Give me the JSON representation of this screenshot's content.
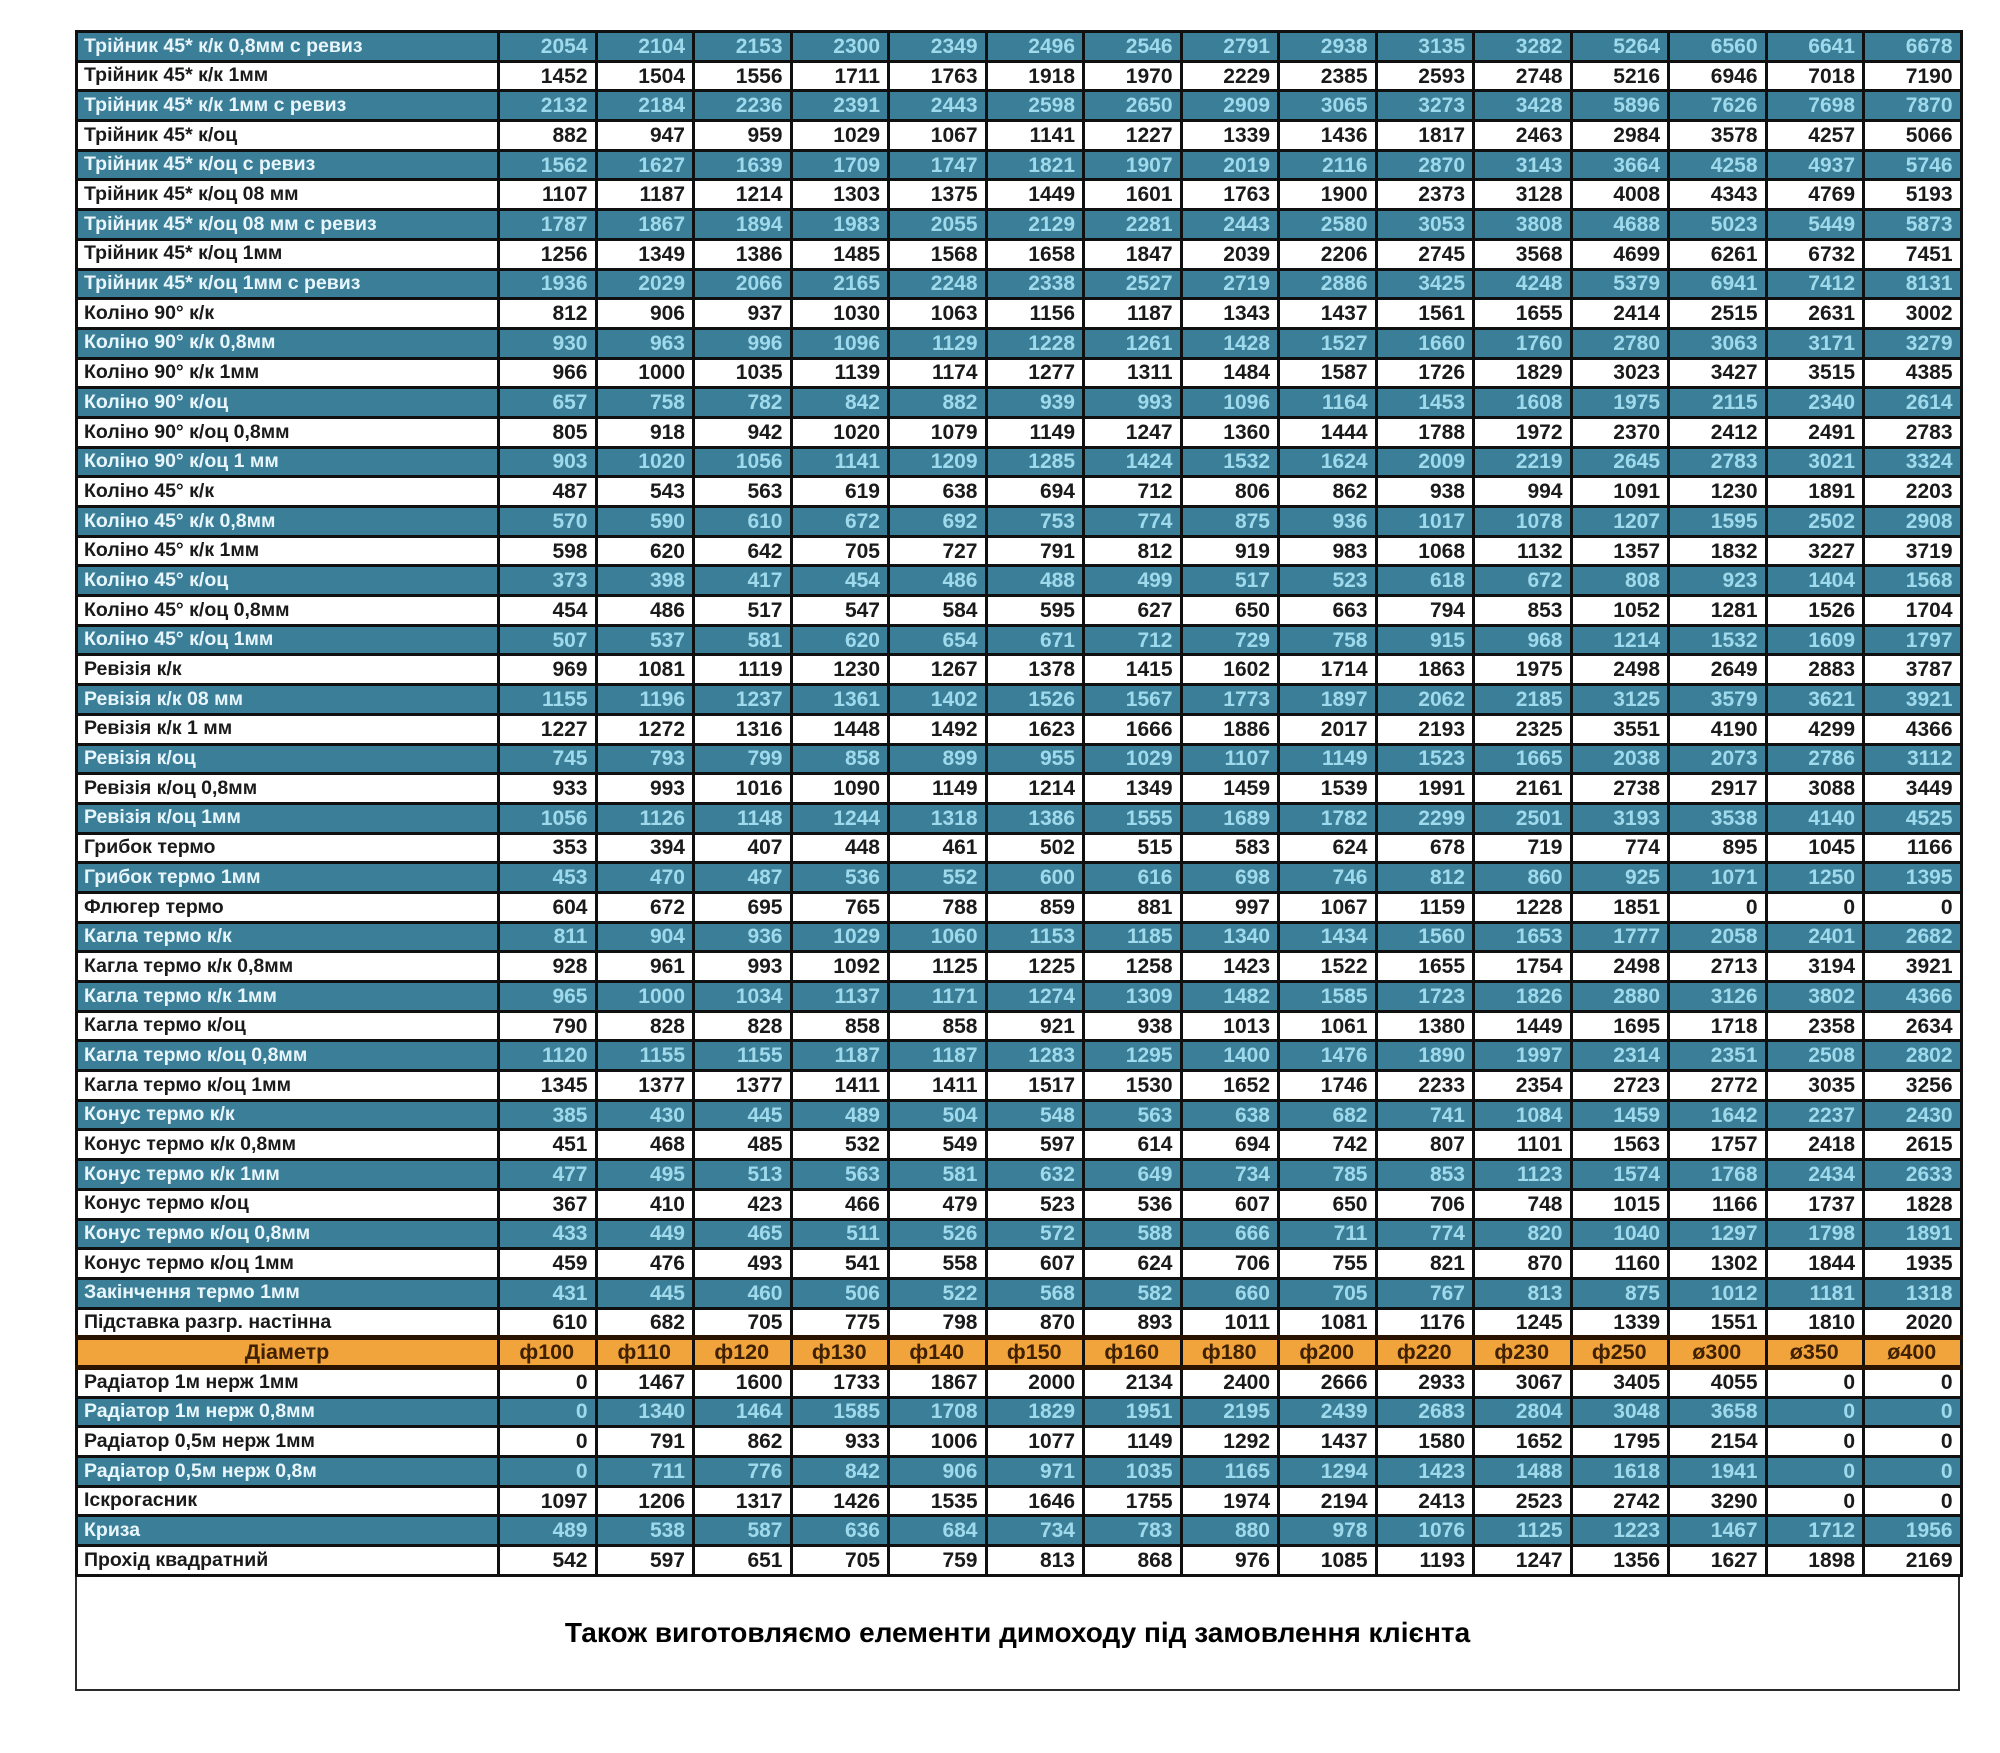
{
  "table": {
    "diameter_label": "Діаметр",
    "columns": [
      "ф100",
      "ф110",
      "ф120",
      "ф130",
      "ф140",
      "ф150",
      "ф160",
      "ф180",
      "ф200",
      "ф220",
      "ф230",
      "ф250",
      "ø300",
      "ø350",
      "ø400"
    ],
    "rows_above": [
      {
        "name": "Трійник 45* к/к 0,8мм с ревиз",
        "values": [
          2054,
          2104,
          2153,
          2300,
          2349,
          2496,
          2546,
          2791,
          2938,
          3135,
          3282,
          5264,
          6560,
          6641,
          6678
        ]
      },
      {
        "name": "Трійник 45* к/к 1мм",
        "values": [
          1452,
          1504,
          1556,
          1711,
          1763,
          1918,
          1970,
          2229,
          2385,
          2593,
          2748,
          5216,
          6946,
          7018,
          7190
        ]
      },
      {
        "name": "Трійник 45* к/к 1мм с ревиз",
        "values": [
          2132,
          2184,
          2236,
          2391,
          2443,
          2598,
          2650,
          2909,
          3065,
          3273,
          3428,
          5896,
          7626,
          7698,
          7870
        ]
      },
      {
        "name": "Трійник 45* к/оц",
        "values": [
          882,
          947,
          959,
          1029,
          1067,
          1141,
          1227,
          1339,
          1436,
          1817,
          2463,
          2984,
          3578,
          4257,
          5066
        ]
      },
      {
        "name": "Трійник 45* к/оц с ревиз",
        "values": [
          1562,
          1627,
          1639,
          1709,
          1747,
          1821,
          1907,
          2019,
          2116,
          2870,
          3143,
          3664,
          4258,
          4937,
          5746
        ]
      },
      {
        "name": "Трійник 45* к/оц 08 мм",
        "values": [
          1107,
          1187,
          1214,
          1303,
          1375,
          1449,
          1601,
          1763,
          1900,
          2373,
          3128,
          4008,
          4343,
          4769,
          5193
        ]
      },
      {
        "name": "Трійник 45* к/оц 08 мм с ревиз",
        "values": [
          1787,
          1867,
          1894,
          1983,
          2055,
          2129,
          2281,
          2443,
          2580,
          3053,
          3808,
          4688,
          5023,
          5449,
          5873
        ]
      },
      {
        "name": "Трійник 45* к/оц 1мм",
        "values": [
          1256,
          1349,
          1386,
          1485,
          1568,
          1658,
          1847,
          2039,
          2206,
          2745,
          3568,
          4699,
          6261,
          6732,
          7451
        ]
      },
      {
        "name": "Трійник 45* к/оц 1мм с ревиз",
        "values": [
          1936,
          2029,
          2066,
          2165,
          2248,
          2338,
          2527,
          2719,
          2886,
          3425,
          4248,
          5379,
          6941,
          7412,
          8131
        ]
      },
      {
        "name": "Коліно 90° к/к",
        "values": [
          812,
          906,
          937,
          1030,
          1063,
          1156,
          1187,
          1343,
          1437,
          1561,
          1655,
          2414,
          2515,
          2631,
          3002
        ]
      },
      {
        "name": "Коліно 90° к/к 0,8мм",
        "values": [
          930,
          963,
          996,
          1096,
          1129,
          1228,
          1261,
          1428,
          1527,
          1660,
          1760,
          2780,
          3063,
          3171,
          3279
        ]
      },
      {
        "name": "Коліно 90° к/к 1мм",
        "values": [
          966,
          1000,
          1035,
          1139,
          1174,
          1277,
          1311,
          1484,
          1587,
          1726,
          1829,
          3023,
          3427,
          3515,
          4385
        ]
      },
      {
        "name": "Коліно 90° к/оц",
        "values": [
          657,
          758,
          782,
          842,
          882,
          939,
          993,
          1096,
          1164,
          1453,
          1608,
          1975,
          2115,
          2340,
          2614
        ]
      },
      {
        "name": "Коліно 90° к/оц 0,8мм",
        "values": [
          805,
          918,
          942,
          1020,
          1079,
          1149,
          1247,
          1360,
          1444,
          1788,
          1972,
          2370,
          2412,
          2491,
          2783
        ]
      },
      {
        "name": "Коліно 90° к/оц 1 мм",
        "values": [
          903,
          1020,
          1056,
          1141,
          1209,
          1285,
          1424,
          1532,
          1624,
          2009,
          2219,
          2645,
          2783,
          3021,
          3324
        ]
      },
      {
        "name": "Коліно 45° к/к",
        "values": [
          487,
          543,
          563,
          619,
          638,
          694,
          712,
          806,
          862,
          938,
          994,
          1091,
          1230,
          1891,
          2203
        ]
      },
      {
        "name": "Коліно 45° к/к 0,8мм",
        "values": [
          570,
          590,
          610,
          672,
          692,
          753,
          774,
          875,
          936,
          1017,
          1078,
          1207,
          1595,
          2502,
          2908
        ]
      },
      {
        "name": "Коліно 45° к/к 1мм",
        "values": [
          598,
          620,
          642,
          705,
          727,
          791,
          812,
          919,
          983,
          1068,
          1132,
          1357,
          1832,
          3227,
          3719
        ]
      },
      {
        "name": "Коліно 45° к/оц",
        "values": [
          373,
          398,
          417,
          454,
          486,
          488,
          499,
          517,
          523,
          618,
          672,
          808,
          923,
          1404,
          1568
        ]
      },
      {
        "name": "Коліно 45° к/оц 0,8мм",
        "values": [
          454,
          486,
          517,
          547,
          584,
          595,
          627,
          650,
          663,
          794,
          853,
          1052,
          1281,
          1526,
          1704
        ]
      },
      {
        "name": "Коліно 45° к/оц 1мм",
        "values": [
          507,
          537,
          581,
          620,
          654,
          671,
          712,
          729,
          758,
          915,
          968,
          1214,
          1532,
          1609,
          1797
        ]
      },
      {
        "name": "Ревізія к/к",
        "values": [
          969,
          1081,
          1119,
          1230,
          1267,
          1378,
          1415,
          1602,
          1714,
          1863,
          1975,
          2498,
          2649,
          2883,
          3787
        ]
      },
      {
        "name": "Ревізія к/к 08 мм",
        "values": [
          1155,
          1196,
          1237,
          1361,
          1402,
          1526,
          1567,
          1773,
          1897,
          2062,
          2185,
          3125,
          3579,
          3621,
          3921
        ]
      },
      {
        "name": "Ревізія к/к 1 мм",
        "values": [
          1227,
          1272,
          1316,
          1448,
          1492,
          1623,
          1666,
          1886,
          2017,
          2193,
          2325,
          3551,
          4190,
          4299,
          4366
        ]
      },
      {
        "name": "Ревізія к/оц",
        "values": [
          745,
          793,
          799,
          858,
          899,
          955,
          1029,
          1107,
          1149,
          1523,
          1665,
          2038,
          2073,
          2786,
          3112
        ]
      },
      {
        "name": "Ревізія к/оц 0,8мм",
        "values": [
          933,
          993,
          1016,
          1090,
          1149,
          1214,
          1349,
          1459,
          1539,
          1991,
          2161,
          2738,
          2917,
          3088,
          3449
        ]
      },
      {
        "name": "Ревізія к/оц 1мм",
        "values": [
          1056,
          1126,
          1148,
          1244,
          1318,
          1386,
          1555,
          1689,
          1782,
          2299,
          2501,
          3193,
          3538,
          4140,
          4525
        ]
      },
      {
        "name": "Грибок термо",
        "values": [
          353,
          394,
          407,
          448,
          461,
          502,
          515,
          583,
          624,
          678,
          719,
          774,
          895,
          1045,
          1166
        ]
      },
      {
        "name": "Грибок термо 1мм",
        "values": [
          453,
          470,
          487,
          536,
          552,
          600,
          616,
          698,
          746,
          812,
          860,
          925,
          1071,
          1250,
          1395
        ]
      },
      {
        "name": "Флюгер термо",
        "values": [
          604,
          672,
          695,
          765,
          788,
          859,
          881,
          997,
          1067,
          1159,
          1228,
          1851,
          0,
          0,
          0
        ]
      },
      {
        "name": "Кагла термо к/к",
        "values": [
          811,
          904,
          936,
          1029,
          1060,
          1153,
          1185,
          1340,
          1434,
          1560,
          1653,
          1777,
          2058,
          2401,
          2682
        ]
      },
      {
        "name": "Кагла термо к/к 0,8мм",
        "values": [
          928,
          961,
          993,
          1092,
          1125,
          1225,
          1258,
          1423,
          1522,
          1655,
          1754,
          2498,
          2713,
          3194,
          3921
        ]
      },
      {
        "name": "Кагла термо к/к 1мм",
        "values": [
          965,
          1000,
          1034,
          1137,
          1171,
          1274,
          1309,
          1482,
          1585,
          1723,
          1826,
          2880,
          3126,
          3802,
          4366
        ]
      },
      {
        "name": "Кагла термо к/оц",
        "values": [
          790,
          828,
          828,
          858,
          858,
          921,
          938,
          1013,
          1061,
          1380,
          1449,
          1695,
          1718,
          2358,
          2634
        ]
      },
      {
        "name": "Кагла термо к/оц 0,8мм",
        "values": [
          1120,
          1155,
          1155,
          1187,
          1187,
          1283,
          1295,
          1400,
          1476,
          1890,
          1997,
          2314,
          2351,
          2508,
          2802
        ]
      },
      {
        "name": "Кагла термо к/оц 1мм",
        "values": [
          1345,
          1377,
          1377,
          1411,
          1411,
          1517,
          1530,
          1652,
          1746,
          2233,
          2354,
          2723,
          2772,
          3035,
          3256
        ]
      },
      {
        "name": "Конус термо к/к",
        "values": [
          385,
          430,
          445,
          489,
          504,
          548,
          563,
          638,
          682,
          741,
          1084,
          1459,
          1642,
          2237,
          2430
        ]
      },
      {
        "name": "Конус термо к/к 0,8мм",
        "values": [
          451,
          468,
          485,
          532,
          549,
          597,
          614,
          694,
          742,
          807,
          1101,
          1563,
          1757,
          2418,
          2615
        ]
      },
      {
        "name": "Конус термо к/к 1мм",
        "values": [
          477,
          495,
          513,
          563,
          581,
          632,
          649,
          734,
          785,
          853,
          1123,
          1574,
          1768,
          2434,
          2633
        ]
      },
      {
        "name": "Конус термо к/оц",
        "values": [
          367,
          410,
          423,
          466,
          479,
          523,
          536,
          607,
          650,
          706,
          748,
          1015,
          1166,
          1737,
          1828
        ]
      },
      {
        "name": "Конус термо к/оц 0,8мм",
        "values": [
          433,
          449,
          465,
          511,
          526,
          572,
          588,
          666,
          711,
          774,
          820,
          1040,
          1297,
          1798,
          1891
        ]
      },
      {
        "name": "Конус термо к/оц 1мм",
        "values": [
          459,
          476,
          493,
          541,
          558,
          607,
          624,
          706,
          755,
          821,
          870,
          1160,
          1302,
          1844,
          1935
        ]
      },
      {
        "name": "Закінчення термо 1мм",
        "values": [
          431,
          445,
          460,
          506,
          522,
          568,
          582,
          660,
          705,
          767,
          813,
          875,
          1012,
          1181,
          1318
        ]
      },
      {
        "name": "Підставка разгр. настінна",
        "values": [
          610,
          682,
          705,
          775,
          798,
          870,
          893,
          1011,
          1081,
          1176,
          1245,
          1339,
          1551,
          1810,
          2020
        ]
      }
    ],
    "rows_below": [
      {
        "name": "Радіатор 1м нерж 1мм",
        "values": [
          0,
          1467,
          1600,
          1733,
          1867,
          2000,
          2134,
          2400,
          2666,
          2933,
          3067,
          3405,
          4055,
          0,
          0
        ]
      },
      {
        "name": "Радіатор 1м нерж 0,8мм",
        "values": [
          0,
          1340,
          1464,
          1585,
          1708,
          1829,
          1951,
          2195,
          2439,
          2683,
          2804,
          3048,
          3658,
          0,
          0
        ]
      },
      {
        "name": "Радіатор 0,5м нерж 1мм",
        "values": [
          0,
          791,
          862,
          933,
          1006,
          1077,
          1149,
          1292,
          1437,
          1580,
          1652,
          1795,
          2154,
          0,
          0
        ]
      },
      {
        "name": "Радіатор 0,5м нерж 0,8м",
        "values": [
          0,
          711,
          776,
          842,
          906,
          971,
          1035,
          1165,
          1294,
          1423,
          1488,
          1618,
          1941,
          0,
          0
        ]
      },
      {
        "name": "Іскрогасник",
        "values": [
          1097,
          1206,
          1317,
          1426,
          1535,
          1646,
          1755,
          1974,
          2194,
          2413,
          2523,
          2742,
          3290,
          0,
          0
        ]
      },
      {
        "name": "Криза",
        "values": [
          489,
          538,
          587,
          636,
          684,
          734,
          783,
          880,
          978,
          1076,
          1125,
          1223,
          1467,
          1712,
          1956
        ]
      },
      {
        "name": "Прохід квадратний",
        "values": [
          542,
          597,
          651,
          705,
          759,
          813,
          868,
          976,
          1085,
          1193,
          1247,
          1356,
          1627,
          1898,
          2169
        ]
      }
    ],
    "footer": "Також виготовляємо елементи димоходу під замовлення клієнта"
  },
  "colors": {
    "stripe_teal": "#3B7E97",
    "stripe_white": "#FFFFFF",
    "teal_name_text": "#E8F6FC",
    "teal_value_text": "#9FD9EC",
    "dark_text": "#1A1A1A",
    "header_orange": "#F1A43B",
    "header_text": "#3F2000",
    "header_border": "#2A1400",
    "grid_border": "#101010"
  }
}
